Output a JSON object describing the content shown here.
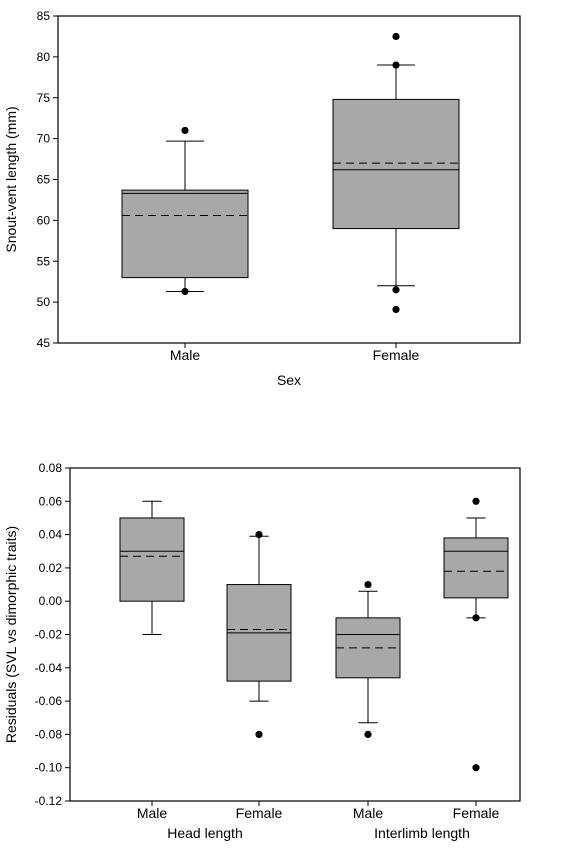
{
  "chart_data": [
    {
      "type": "box",
      "title": "",
      "xlabel": "Sex",
      "ylabel": "Snout-vent length (mm)",
      "ylim": [
        45,
        85
      ],
      "yticks": [
        45,
        50,
        55,
        60,
        65,
        70,
        75,
        80,
        85
      ],
      "ytick_labels": [
        "45",
        "50",
        "55",
        "60",
        "65",
        "70",
        "75",
        "80",
        "85"
      ],
      "grid": false,
      "categories": [
        "Male",
        "Female"
      ],
      "groups": [
        ""
      ],
      "boxes": [
        {
          "category": "Male",
          "whisker_low": 51.3,
          "q1": 53.0,
          "median": 63.3,
          "mean": 60.6,
          "q3": 63.7,
          "whisker_high": 69.7,
          "outliers": [
            51.3,
            71.0
          ]
        },
        {
          "category": "Female",
          "whisker_low": 52.0,
          "q1": 59.0,
          "median": 66.2,
          "mean": 67.0,
          "q3": 74.8,
          "whisker_high": 79.0,
          "outliers": [
            79.0,
            82.5,
            51.5,
            49.1
          ]
        }
      ]
    },
    {
      "type": "box",
      "title": "",
      "xlabel": "",
      "ylabel": "Residuals (SVL vs dimorphic traits)",
      "ylim": [
        -0.12,
        0.08
      ],
      "yticks": [
        -0.12,
        -0.1,
        -0.08,
        -0.06,
        -0.04,
        -0.02,
        0.0,
        0.02,
        0.04,
        0.06,
        0.08
      ],
      "ytick_labels": [
        "-0.12",
        "-0.10",
        "-0.08",
        "-0.06",
        "-0.04",
        "-0.02",
        "0.00",
        "0.02",
        "0.04",
        "0.06",
        "0.08"
      ],
      "grid": false,
      "categories": [
        "Male",
        "Female",
        "Male",
        "Female"
      ],
      "groups": [
        "Head length",
        "Interlimb length"
      ],
      "boxes": [
        {
          "category": "Male",
          "whisker_low": -0.02,
          "q1": 0.0,
          "median": 0.03,
          "mean": 0.027,
          "q3": 0.05,
          "whisker_high": 0.06,
          "outliers": []
        },
        {
          "category": "Female",
          "whisker_low": -0.06,
          "q1": -0.048,
          "median": -0.019,
          "mean": -0.017,
          "q3": 0.01,
          "whisker_high": 0.039,
          "outliers": [
            0.04,
            -0.08
          ]
        },
        {
          "category": "Male",
          "whisker_low": -0.073,
          "q1": -0.046,
          "median": -0.02,
          "mean": -0.028,
          "q3": -0.01,
          "whisker_high": 0.006,
          "outliers": [
            0.01,
            -0.08
          ]
        },
        {
          "category": "Female",
          "whisker_low": -0.01,
          "q1": 0.002,
          "median": 0.03,
          "mean": 0.018,
          "q3": 0.038,
          "whisker_high": 0.05,
          "outliers": [
            0.06,
            -0.01,
            -0.1
          ]
        }
      ]
    }
  ],
  "colors": {
    "box_fill": "#a8a8a8",
    "stroke": "#000000",
    "background": "#ffffff"
  }
}
